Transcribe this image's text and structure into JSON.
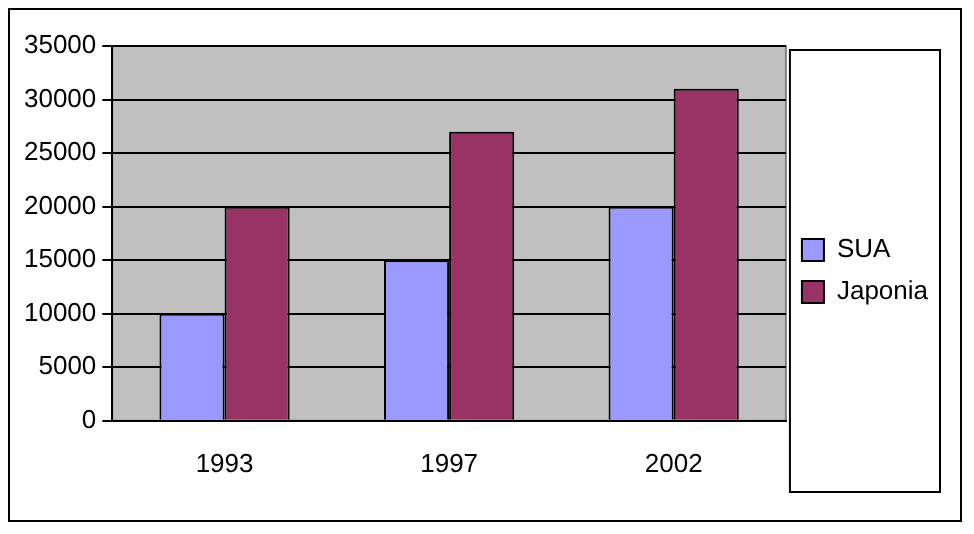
{
  "chart_data": {
    "type": "bar",
    "categories": [
      "1993",
      "1997",
      "2002"
    ],
    "series": [
      {
        "name": "SUA",
        "color": "#9999ff",
        "values": [
          10000,
          15000,
          20000
        ]
      },
      {
        "name": "Japonia",
        "color": "#993366",
        "values": [
          20000,
          27000,
          31000
        ]
      }
    ],
    "ylim": [
      0,
      35000
    ],
    "yticks": [
      0,
      5000,
      10000,
      15000,
      20000,
      25000,
      30000,
      35000
    ],
    "grid": "y",
    "legend": "right"
  }
}
